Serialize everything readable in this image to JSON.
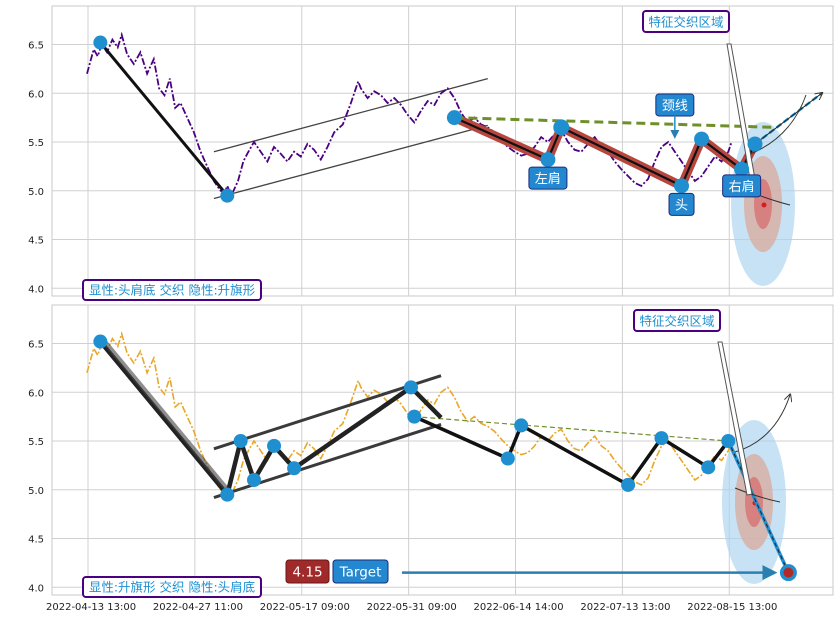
{
  "chart_data": [
    {
      "type": "line",
      "panel": "top",
      "ylim": [
        3.93,
        6.93
      ],
      "y_ticks": [
        "4.0",
        "4.5",
        "5.0",
        "5.5",
        "6.0",
        "6.5"
      ],
      "y_tick_values": [
        4.0,
        4.5,
        5.0,
        5.5,
        6.0,
        6.5
      ],
      "grid": true,
      "price_series": {
        "style": "dash-dot",
        "color": "#4b0082",
        "points": [
          [
            0,
            6.2
          ],
          [
            1,
            6.45
          ],
          [
            1.6,
            6.38
          ],
          [
            2.2,
            6.5
          ],
          [
            3,
            6.42
          ],
          [
            3.8,
            6.55
          ],
          [
            4.6,
            6.47
          ],
          [
            5.2,
            6.6
          ],
          [
            6,
            6.4
          ],
          [
            7,
            6.3
          ],
          [
            8,
            6.42
          ],
          [
            9,
            6.2
          ],
          [
            10,
            6.35
          ],
          [
            10.8,
            6.05
          ],
          [
            11.6,
            5.98
          ],
          [
            12.4,
            6.15
          ],
          [
            13.2,
            5.85
          ],
          [
            14,
            5.9
          ],
          [
            15,
            5.75
          ],
          [
            16,
            5.6
          ],
          [
            17,
            5.4
          ],
          [
            18,
            5.25
          ],
          [
            19,
            5.1
          ],
          [
            20,
            5.0
          ],
          [
            20.6,
            4.98
          ],
          [
            21,
            5.05
          ],
          [
            21.6,
            4.95
          ],
          [
            22.6,
            5.1
          ],
          [
            23.4,
            5.3
          ],
          [
            24,
            5.38
          ],
          [
            25,
            5.5
          ],
          [
            26,
            5.4
          ],
          [
            27,
            5.3
          ],
          [
            28,
            5.45
          ],
          [
            29,
            5.38
          ],
          [
            30,
            5.3
          ],
          [
            31,
            5.4
          ],
          [
            32,
            5.35
          ],
          [
            33,
            5.48
          ],
          [
            34,
            5.42
          ],
          [
            35,
            5.32
          ],
          [
            36,
            5.45
          ],
          [
            37,
            5.6
          ],
          [
            38.3,
            5.68
          ],
          [
            39.5,
            5.9
          ],
          [
            40,
            6.0
          ],
          [
            40.6,
            6.12
          ],
          [
            41,
            6.05
          ],
          [
            42,
            5.95
          ],
          [
            43,
            6.02
          ],
          [
            44,
            5.98
          ],
          [
            45,
            5.9
          ],
          [
            46,
            5.95
          ],
          [
            47,
            5.88
          ],
          [
            48,
            5.78
          ],
          [
            49,
            5.7
          ],
          [
            50,
            5.82
          ],
          [
            51,
            5.92
          ],
          [
            52,
            5.88
          ],
          [
            53,
            6.0
          ],
          [
            54,
            6.05
          ],
          [
            55,
            5.95
          ],
          [
            56,
            5.8
          ],
          [
            57,
            5.7
          ],
          [
            58,
            5.75
          ],
          [
            59,
            5.68
          ],
          [
            60,
            5.65
          ],
          [
            61,
            5.6
          ],
          [
            62,
            5.52
          ],
          [
            63,
            5.45
          ],
          [
            64,
            5.4
          ],
          [
            65,
            5.36
          ],
          [
            66,
            5.38
          ],
          [
            67,
            5.45
          ],
          [
            68,
            5.55
          ],
          [
            69,
            5.5
          ],
          [
            70,
            5.58
          ],
          [
            71,
            5.62
          ],
          [
            72,
            5.5
          ],
          [
            73,
            5.42
          ],
          [
            74,
            5.4
          ],
          [
            75,
            5.48
          ],
          [
            76,
            5.55
          ],
          [
            77,
            5.45
          ],
          [
            78,
            5.4
          ],
          [
            79,
            5.3
          ],
          [
            80,
            5.22
          ],
          [
            81,
            5.15
          ],
          [
            82,
            5.08
          ],
          [
            83,
            5.05
          ],
          [
            84,
            5.12
          ],
          [
            85,
            5.3
          ],
          [
            86,
            5.45
          ],
          [
            87,
            5.5
          ],
          [
            88,
            5.4
          ],
          [
            89,
            5.3
          ],
          [
            90,
            5.2
          ],
          [
            91,
            5.1
          ],
          [
            92,
            5.15
          ],
          [
            93,
            5.25
          ],
          [
            94,
            5.35
          ],
          [
            95,
            5.3
          ],
          [
            96,
            5.4
          ],
          [
            96.5,
            5.5
          ]
        ]
      },
      "channel_lines": [
        {
          "from": [
            19,
            5.4
          ],
          "to": [
            60,
            6.15
          ]
        },
        {
          "from": [
            19,
            4.92
          ],
          "to": [
            60,
            5.67
          ]
        }
      ],
      "zigzag": [
        [
          2,
          6.52
        ],
        [
          21,
          4.95
        ]
      ],
      "pattern_path": [
        [
          55,
          5.75
        ],
        [
          69,
          5.32
        ],
        [
          71,
          5.65
        ],
        [
          89,
          5.05
        ],
        [
          92,
          5.53
        ],
        [
          98,
          5.22
        ],
        [
          100,
          5.48
        ]
      ],
      "neckline": {
        "from": [
          55,
          5.75
        ],
        "to": [
          103,
          5.65
        ]
      },
      "forecast_projection": {
        "from": [
          100,
          5.48
        ],
        "to": [
          110,
          6.0
        ]
      },
      "labels": [
        {
          "text": "左肩",
          "x": 69,
          "y": 5.13
        },
        {
          "text": "头",
          "x": 89,
          "y": 4.86
        },
        {
          "text": "右肩",
          "x": 98,
          "y": 5.05
        },
        {
          "text": "颈线",
          "x": 88,
          "y": 5.88
        }
      ],
      "region_label": "特征交织区域",
      "footer_label": "显性:头肩底 交织 隐性:升旗形"
    },
    {
      "type": "line",
      "panel": "bottom",
      "ylim": [
        3.93,
        6.93
      ],
      "y_ticks": [
        "4.0",
        "4.5",
        "5.0",
        "5.5",
        "6.0",
        "6.5"
      ],
      "y_tick_values": [
        4.0,
        4.5,
        5.0,
        5.5,
        6.0,
        6.5
      ],
      "grid": true,
      "x_ticks": [
        "2022-04-13 13:00",
        "2022-04-27 11:00",
        "2022-05-17 09:00",
        "2022-05-31 09:00",
        "2022-06-14 14:00",
        "2022-07-13 13:00",
        "2022-08-15 13:00"
      ],
      "x_tick_positions": [
        0,
        16,
        32,
        48,
        64,
        80,
        96
      ],
      "price_series": {
        "style": "dash-dot",
        "color": "#e8a72a"
      },
      "channel_lines": [
        {
          "from": [
            19,
            5.42
          ],
          "to": [
            53,
            6.17
          ]
        },
        {
          "from": [
            19,
            4.92
          ],
          "to": [
            53,
            5.67
          ]
        }
      ],
      "zigzag": [
        [
          2,
          6.52
        ],
        [
          21,
          4.95
        ],
        [
          23,
          5.5
        ],
        [
          25,
          5.1
        ],
        [
          28,
          5.45
        ],
        [
          31,
          5.22
        ],
        [
          48.5,
          6.05
        ],
        [
          53,
          5.74
        ]
      ],
      "pattern_path": [
        [
          49,
          5.75
        ],
        [
          63,
          5.32
        ],
        [
          65,
          5.66
        ],
        [
          81,
          5.05
        ],
        [
          86,
          5.53
        ],
        [
          93,
          5.23
        ],
        [
          96,
          5.5
        ]
      ],
      "neckline": {
        "from": [
          49,
          5.75
        ],
        "to": [
          96,
          5.5
        ]
      },
      "forecast_projection": {
        "from": [
          96,
          5.5
        ],
        "to": [
          105,
          4.15
        ]
      },
      "target": {
        "value_label": "4.15",
        "label": "Target",
        "y": 4.15
      },
      "region_label": "特征交织区域",
      "footer_label": "显性:升旗形 交织 隐性:头肩底"
    }
  ],
  "colors": {
    "background": "#ffffff",
    "grid": "#d0d0d0",
    "axis_border": "#c8c8c8",
    "marker": "#1f8fd0",
    "pattern_fill": "#b6463e",
    "neckline": "#6f8f2a",
    "label_bg": "#2388d0",
    "label_border": "#1b2b7a",
    "region_border": "#4b0082",
    "region_text": "#1f8fd0",
    "target_value_bg": "#a02a2a",
    "target_label_bg": "#2388d0",
    "target_arrow": "#2a7fb0"
  }
}
